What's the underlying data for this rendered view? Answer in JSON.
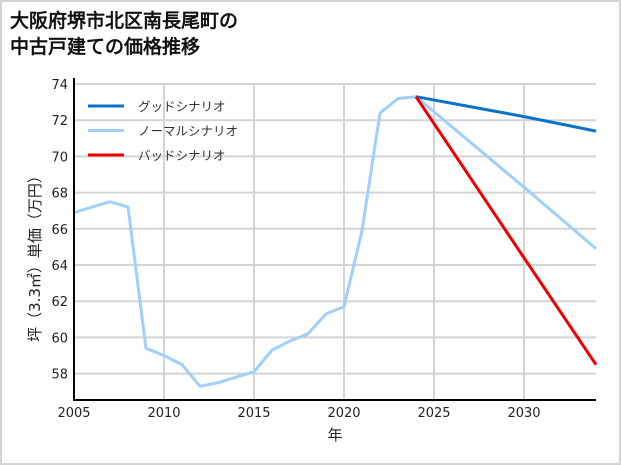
{
  "title": {
    "line1": "大阪府堺市北区南長尾町の",
    "line2": "中古戸建ての価格推移"
  },
  "colors": {
    "good": "#0a72c8",
    "normal": "#9fd0fb",
    "bad": "#ee0000",
    "grid": "#d4d4d4",
    "axis": "#000000",
    "frame": "#d4d4d4"
  },
  "chart_data": {
    "type": "line",
    "title": "大阪府堺市北区南長尾町の中古戸建ての価格推移",
    "xlabel": "年",
    "ylabel": "坪（3.3㎡）単価（万円）",
    "xlim": [
      2005,
      2034
    ],
    "ylim": [
      56.5,
      74
    ],
    "xticks": [
      2005,
      2010,
      2015,
      2020,
      2025,
      2030
    ],
    "yticks": [
      58,
      60,
      62,
      64,
      66,
      68,
      70,
      72,
      74
    ],
    "grid": true,
    "legend_position": "upper left",
    "series": [
      {
        "name": "グッドシナリオ",
        "key": "good",
        "x": [
          2024,
          2030,
          2034
        ],
        "y": [
          73.3,
          72.2,
          71.4
        ]
      },
      {
        "name": "ノーマルシナリオ",
        "key": "normal",
        "x": [
          2005,
          2006,
          2007,
          2008,
          2009,
          2010,
          2011,
          2012,
          2013,
          2014,
          2015,
          2016,
          2017,
          2018,
          2019,
          2020,
          2021,
          2022,
          2023,
          2024,
          2030,
          2034
        ],
        "y": [
          66.9,
          67.2,
          67.5,
          67.2,
          59.4,
          59.0,
          58.5,
          57.3,
          57.5,
          57.8,
          58.1,
          59.3,
          59.8,
          60.2,
          61.3,
          61.7,
          65.9,
          72.4,
          73.2,
          73.3,
          68.3,
          64.9
        ]
      },
      {
        "name": "バッドシナリオ",
        "key": "bad",
        "x": [
          2024,
          2030,
          2034
        ],
        "y": [
          73.3,
          64.4,
          58.5
        ]
      }
    ]
  }
}
